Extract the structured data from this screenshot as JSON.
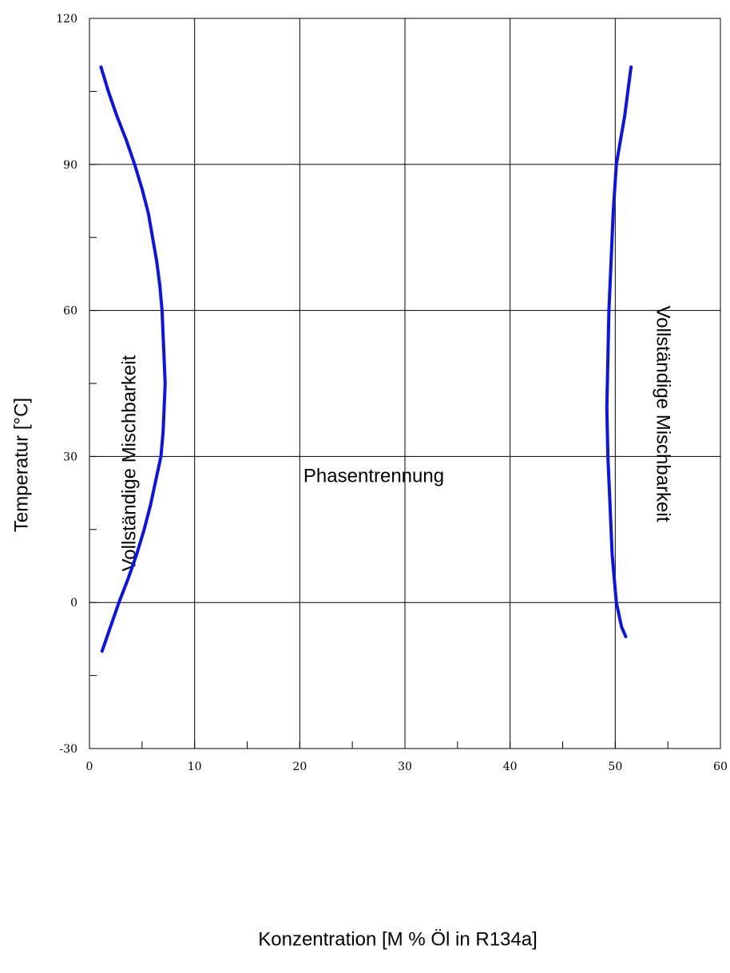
{
  "chart_data": {
    "type": "line",
    "xlabel": "Konzentration [M % Öl in R134a]",
    "ylabel": "Temperatur [°C]",
    "xlim": [
      0,
      60
    ],
    "ylim": [
      -30,
      120
    ],
    "x_ticks": [
      0,
      10,
      20,
      30,
      40,
      50,
      60
    ],
    "y_ticks": [
      -30,
      0,
      30,
      60,
      90,
      120
    ],
    "x_minor_step": 5,
    "y_minor_step": 15,
    "grid": true,
    "colors": {
      "curve": "#0a14e6",
      "grid": "#000000"
    },
    "annotations": {
      "left_region": "Vollständige Mischbarkeit",
      "middle_region": "Phasentrennung",
      "right_region": "Vollständige Mischbarkeit"
    },
    "series": [
      {
        "points": [
          [
            1.2,
            -10
          ],
          [
            2.0,
            -5
          ],
          [
            2.8,
            0
          ],
          [
            3.7,
            5
          ],
          [
            4.5,
            10
          ],
          [
            5.2,
            15
          ],
          [
            5.8,
            20
          ],
          [
            6.3,
            25
          ],
          [
            6.8,
            30
          ],
          [
            7.0,
            35
          ],
          [
            7.1,
            40
          ],
          [
            7.2,
            45
          ],
          [
            7.1,
            50
          ],
          [
            7.0,
            55
          ],
          [
            6.9,
            60
          ],
          [
            6.7,
            65
          ],
          [
            6.4,
            70
          ],
          [
            6.0,
            75
          ],
          [
            5.6,
            80
          ],
          [
            5.0,
            85
          ],
          [
            4.3,
            90
          ],
          [
            3.5,
            95
          ],
          [
            2.6,
            100
          ],
          [
            1.8,
            105
          ],
          [
            1.1,
            110
          ]
        ]
      },
      {
        "points": [
          [
            51.0,
            -7
          ],
          [
            50.6,
            -5
          ],
          [
            50.3,
            -2
          ],
          [
            50.1,
            0
          ],
          [
            49.9,
            5
          ],
          [
            49.7,
            10
          ],
          [
            49.5,
            20
          ],
          [
            49.3,
            30
          ],
          [
            49.2,
            40
          ],
          [
            49.3,
            50
          ],
          [
            49.4,
            60
          ],
          [
            49.6,
            70
          ],
          [
            49.8,
            80
          ],
          [
            50.1,
            90
          ],
          [
            50.5,
            95
          ],
          [
            50.9,
            100
          ],
          [
            51.2,
            105
          ],
          [
            51.5,
            110
          ]
        ]
      }
    ]
  }
}
